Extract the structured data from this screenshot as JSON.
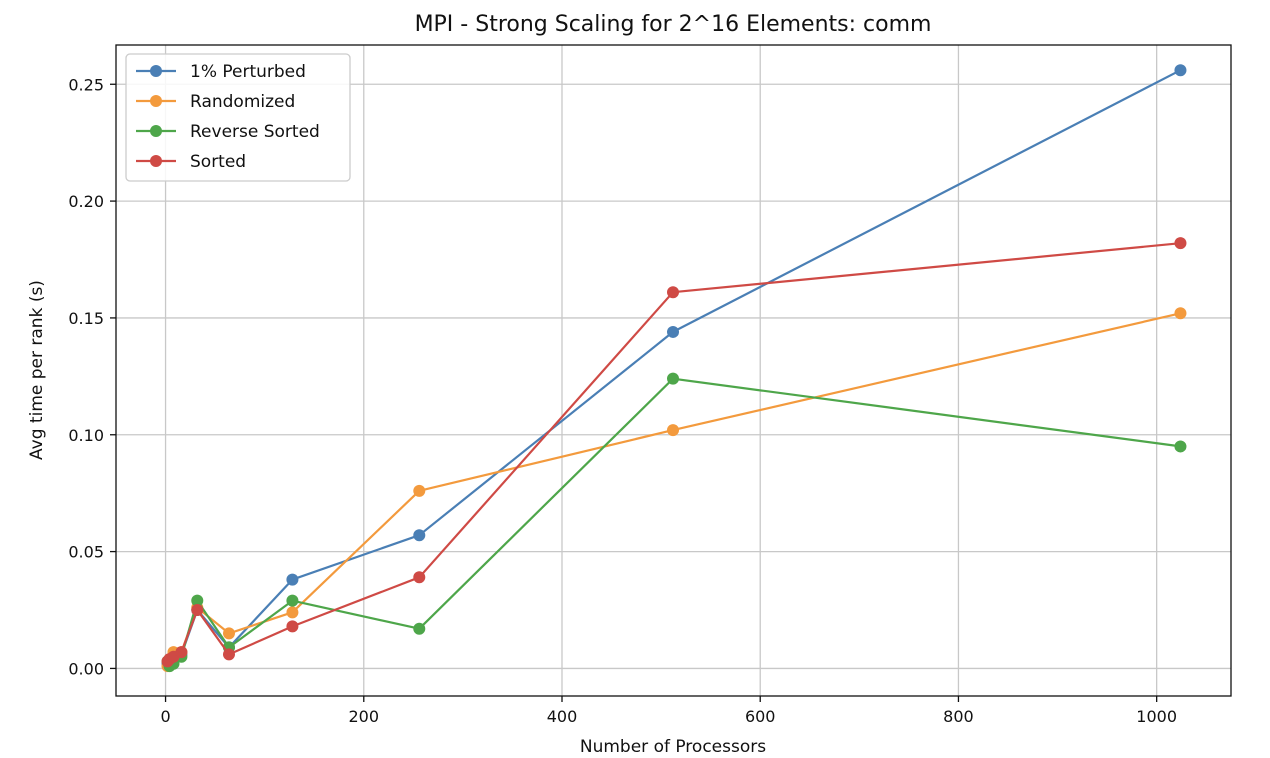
{
  "chart_data": {
    "type": "line",
    "title": "MPI - Strong Scaling for 2^16 Elements: comm",
    "xlabel": "Number of Processors",
    "ylabel": "Avg time per rank (s)",
    "xlim": [
      -50,
      1075
    ],
    "ylim": [
      -0.0118,
      0.2668
    ],
    "xticks": [
      0,
      200,
      400,
      600,
      800,
      1000
    ],
    "xtick_labels": [
      "0",
      "200",
      "400",
      "600",
      "800",
      "1000"
    ],
    "yticks": [
      0.0,
      0.05,
      0.1,
      0.15,
      0.2,
      0.25
    ],
    "ytick_labels": [
      "0.00",
      "0.05",
      "0.10",
      "0.15",
      "0.20",
      "0.25"
    ],
    "grid": true,
    "legend_position": "top-left",
    "x": [
      2,
      4,
      8,
      16,
      32,
      64,
      128,
      256,
      512,
      1024
    ],
    "series": [
      {
        "name": "1% Perturbed",
        "color": "#4a7fb5",
        "values": [
          0.002,
          0.003,
          0.004,
          0.006,
          0.025,
          0.009,
          0.038,
          0.057,
          0.144,
          0.256
        ]
      },
      {
        "name": "Randomized",
        "color": "#f39a3d",
        "values": [
          0.001,
          0.004,
          0.007,
          0.007,
          0.026,
          0.015,
          0.024,
          0.076,
          0.102,
          0.152
        ]
      },
      {
        "name": "Reverse Sorted",
        "color": "#4ea64a",
        "values": [
          0.003,
          0.001,
          0.002,
          0.005,
          0.029,
          0.009,
          0.029,
          0.017,
          0.124,
          0.095
        ]
      },
      {
        "name": "Sorted",
        "color": "#cf4a45",
        "values": [
          0.003,
          0.004,
          0.005,
          0.007,
          0.025,
          0.006,
          0.018,
          0.039,
          0.161,
          0.182
        ]
      }
    ]
  }
}
